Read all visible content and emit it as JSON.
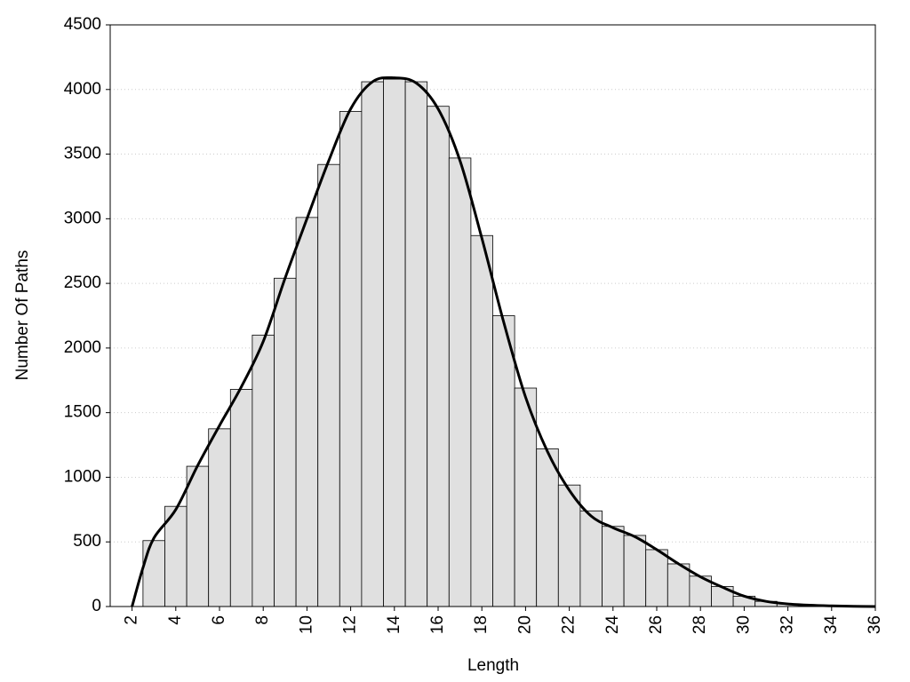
{
  "chart_data": {
    "type": "histogram",
    "x_label": "Length",
    "y_label": "Number Of Paths",
    "bins": [
      2.5,
      3.5,
      4.5,
      5.5,
      6.5,
      7.5,
      8.5,
      9.5,
      10.5,
      11.5,
      12.5,
      13.5,
      14.5,
      15.5,
      16.5,
      17.5,
      18.5,
      19.5,
      20.5,
      21.5,
      22.5,
      23.5,
      24.5,
      25.5,
      26.5,
      27.5,
      28.5,
      29.5,
      30.5,
      31.5,
      32.5,
      33.5,
      34.5,
      35.5
    ],
    "values": [
      510,
      775,
      1085,
      1375,
      1680,
      2100,
      2540,
      3010,
      3420,
      3830,
      4060,
      4080,
      4060,
      3870,
      3470,
      2870,
      2250,
      1690,
      1220,
      940,
      740,
      620,
      550,
      440,
      330,
      235,
      155,
      80,
      40,
      20,
      10,
      5,
      3
    ],
    "color": "#e0e0e0",
    "curve": {
      "color": "#000000",
      "x": [
        2,
        2.5,
        3,
        4,
        5,
        6,
        7,
        8,
        9,
        10,
        11,
        12,
        13,
        14,
        15,
        16,
        17,
        18,
        19,
        20,
        21,
        22,
        23,
        24,
        25,
        26,
        27,
        28,
        29,
        30,
        31,
        32,
        33,
        34,
        35,
        36
      ],
      "y": [
        0,
        300,
        530,
        750,
        1090,
        1400,
        1700,
        2050,
        2540,
        3000,
        3450,
        3850,
        4060,
        4090,
        4050,
        3850,
        3450,
        2850,
        2200,
        1620,
        1200,
        900,
        700,
        610,
        540,
        440,
        330,
        230,
        150,
        80,
        40,
        20,
        10,
        5,
        2,
        0
      ]
    },
    "xlim": [
      1,
      36
    ],
    "ylim": [
      0,
      4500
    ],
    "xticks": [
      2,
      4,
      6,
      8,
      10,
      12,
      14,
      16,
      18,
      20,
      22,
      24,
      26,
      28,
      30,
      32,
      34,
      36
    ],
    "yticks": [
      0,
      500,
      1000,
      1500,
      2000,
      2500,
      3000,
      3500,
      4000,
      4500
    ],
    "grid": true
  }
}
